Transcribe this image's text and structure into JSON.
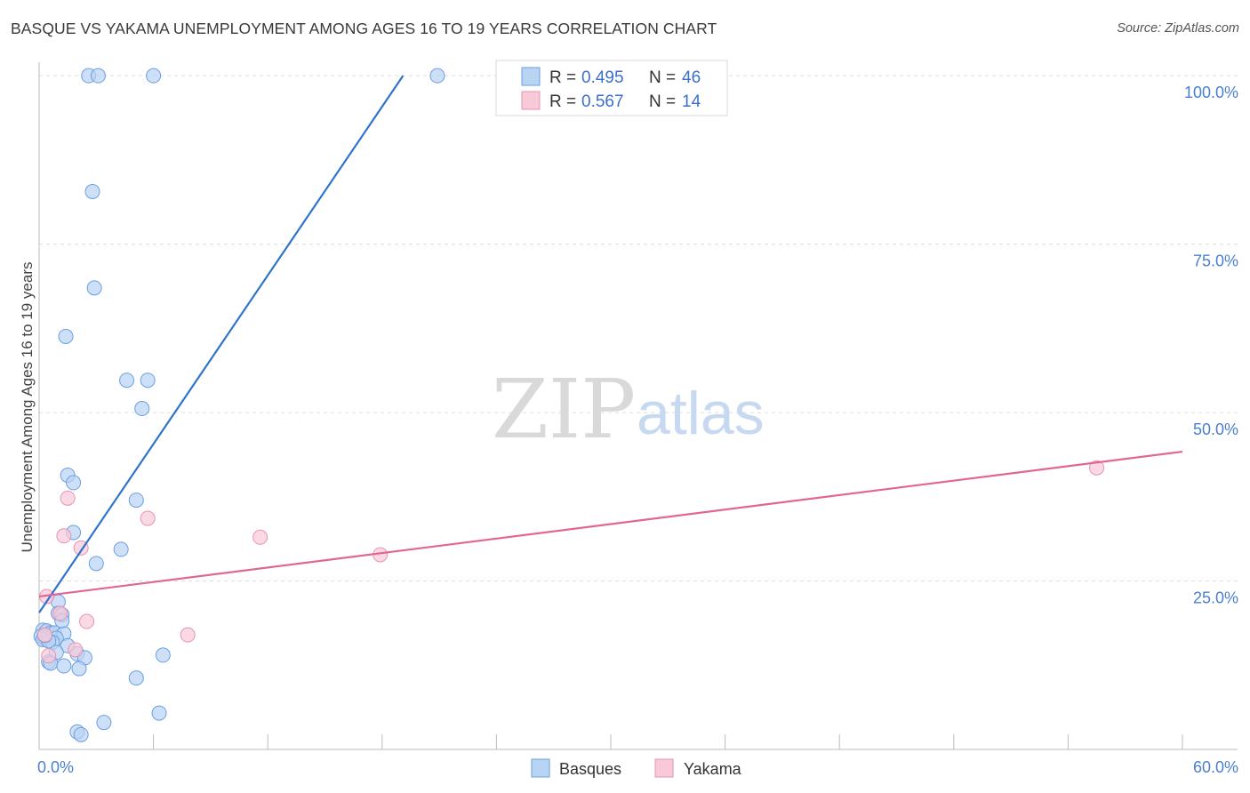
{
  "title": "BASQUE VS YAKAMA UNEMPLOYMENT AMONG AGES 16 TO 19 YEARS CORRELATION CHART",
  "source": "Source: ZipAtlas.com",
  "watermark": {
    "zip": "ZIP",
    "atlas": "atlas"
  },
  "colors": {
    "basques_fill": "#b9d3f3",
    "basques_stroke": "#6b9fe0",
    "basques_line": "#2f74cc",
    "yakama_fill": "#f8c9d8",
    "yakama_stroke": "#e893b0",
    "yakama_line": "#e06793",
    "grid": "#dddddd"
  },
  "legend_top": {
    "rows": [
      {
        "series": "Basques",
        "r_label": "R =",
        "r_value": "0.495",
        "n_label": "N =",
        "n_value": "46"
      },
      {
        "series": "Yakama",
        "r_label": "R =",
        "r_value": "0.567",
        "n_label": "N =",
        "n_value": "14"
      }
    ]
  },
  "legend_bottom": [
    "Basques",
    "Yakama"
  ],
  "chart_data": {
    "type": "scatter",
    "title": "BASQUE VS YAKAMA UNEMPLOYMENT AMONG AGES 16 TO 19 YEARS CORRELATION CHART",
    "xlabel": "",
    "ylabel": "Unemployment Among Ages 16 to 19 years",
    "xlim": [
      0,
      60
    ],
    "ylim": [
      0,
      102
    ],
    "x_tick_labels": [
      {
        "value": 0,
        "label": "0.0%"
      },
      {
        "value": 60,
        "label": "60.0%"
      }
    ],
    "x_minor_ticks": [
      6,
      12,
      18,
      24,
      30,
      36,
      42,
      48,
      54,
      60
    ],
    "y_ticks": [
      {
        "value": 25,
        "label": "25.0%"
      },
      {
        "value": 50,
        "label": "50.0%"
      },
      {
        "value": 75,
        "label": "75.0%"
      },
      {
        "value": 100,
        "label": "100.0%"
      }
    ],
    "grid": true,
    "series": [
      {
        "name": "Basques",
        "points": [
          [
            2.6,
            100
          ],
          [
            3.1,
            100
          ],
          [
            6.0,
            100
          ],
          [
            20.9,
            100
          ],
          [
            2.8,
            82.8
          ],
          [
            2.9,
            68.5
          ],
          [
            1.4,
            61.3
          ],
          [
            4.6,
            54.8
          ],
          [
            5.7,
            54.8
          ],
          [
            5.4,
            50.6
          ],
          [
            1.5,
            40.7
          ],
          [
            1.8,
            39.6
          ],
          [
            5.1,
            37.0
          ],
          [
            1.8,
            32.2
          ],
          [
            4.3,
            29.7
          ],
          [
            3.0,
            27.6
          ],
          [
            1.0,
            21.9
          ],
          [
            1.0,
            20.2
          ],
          [
            1.2,
            20.0
          ],
          [
            0.2,
            17.7
          ],
          [
            0.4,
            17.6
          ],
          [
            0.6,
            17.3
          ],
          [
            0.8,
            17.3
          ],
          [
            1.3,
            17.2
          ],
          [
            0.1,
            16.8
          ],
          [
            0.3,
            16.5
          ],
          [
            0.2,
            16.3
          ],
          [
            0.9,
            16.5
          ],
          [
            0.7,
            15.9
          ],
          [
            0.5,
            16.1
          ],
          [
            1.2,
            19.1
          ],
          [
            1.5,
            15.4
          ],
          [
            0.9,
            14.4
          ],
          [
            2.0,
            14.2
          ],
          [
            2.4,
            13.6
          ],
          [
            6.5,
            14.0
          ],
          [
            0.5,
            13.0
          ],
          [
            0.6,
            12.8
          ],
          [
            1.3,
            12.4
          ],
          [
            2.1,
            12.0
          ],
          [
            5.1,
            10.6
          ],
          [
            6.3,
            5.4
          ],
          [
            3.4,
            4.0
          ],
          [
            2.0,
            2.6
          ],
          [
            2.2,
            2.2
          ],
          [
            0.3,
            16.9
          ]
        ],
        "trendline": {
          "x": [
            0.0,
            19.1
          ],
          "y": [
            20.3,
            100
          ]
        }
      },
      {
        "name": "Yakama",
        "points": [
          [
            0.4,
            22.7
          ],
          [
            1.5,
            37.3
          ],
          [
            1.3,
            31.7
          ],
          [
            2.2,
            29.9
          ],
          [
            5.7,
            34.3
          ],
          [
            11.6,
            31.5
          ],
          [
            17.9,
            28.9
          ],
          [
            55.5,
            41.8
          ],
          [
            2.5,
            19.0
          ],
          [
            7.8,
            17.0
          ],
          [
            1.1,
            20.2
          ],
          [
            1.9,
            14.8
          ],
          [
            0.5,
            13.9
          ],
          [
            0.3,
            17.0
          ]
        ],
        "trendline": {
          "x": [
            0.0,
            60.0
          ],
          "y": [
            22.7,
            44.2
          ]
        }
      }
    ]
  }
}
